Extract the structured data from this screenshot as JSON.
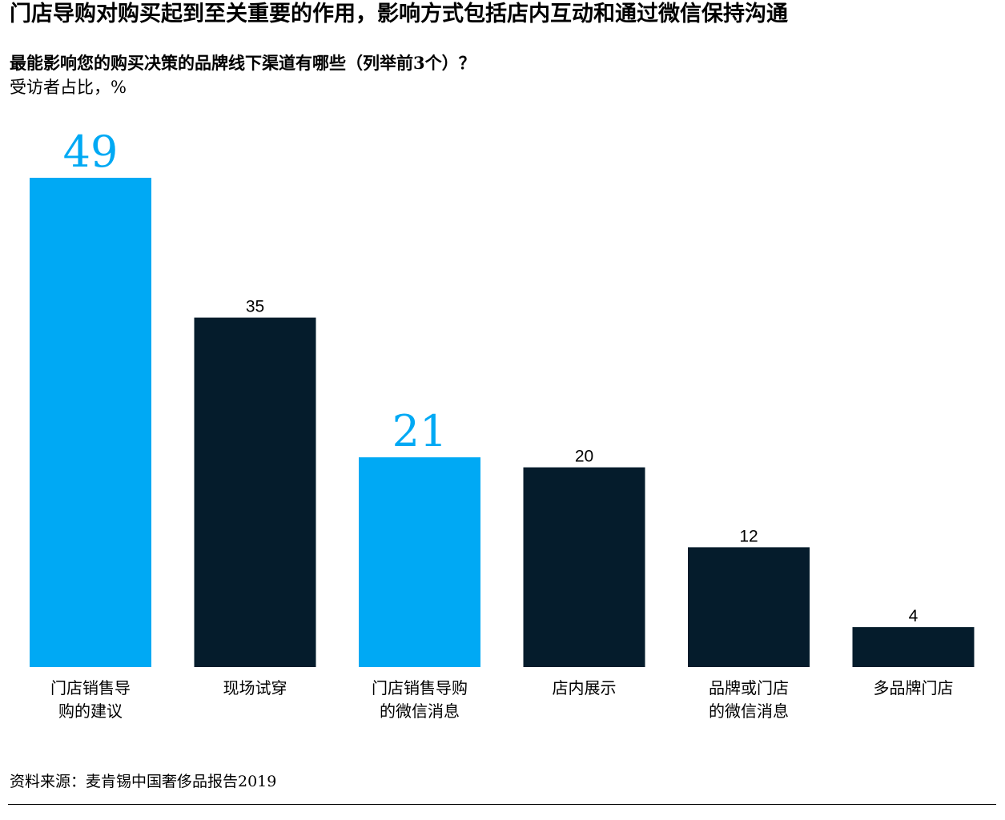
{
  "header": {
    "title": "门店导购对购买起到至关重要的作用，影响方式包括店内互动和通过微信保持沟通",
    "question": "最能影响您的购买决策的品牌线下渠道有哪些（列举前3个）？",
    "unit": "受访者占比，%"
  },
  "footer": {
    "source": "资料来源：麦肯锡中国奢侈品报告2019"
  },
  "chart_data": {
    "type": "bar",
    "categories": [
      [
        "门店销售导",
        "购的建议"
      ],
      [
        "现场试穿"
      ],
      [
        "门店销售导购",
        "的微信消息"
      ],
      [
        "店内展示"
      ],
      [
        "品牌或门店",
        "的微信消息"
      ],
      [
        "多品牌门店"
      ]
    ],
    "values": [
      49,
      35,
      21,
      20,
      12,
      4
    ],
    "highlighted": [
      true,
      false,
      true,
      false,
      false,
      false
    ],
    "ylim": [
      0,
      49
    ],
    "grid": false,
    "legend": "none",
    "colors": {
      "highlight": "#00A9F4",
      "default": "#051C2C",
      "label_default": "#000000"
    }
  }
}
